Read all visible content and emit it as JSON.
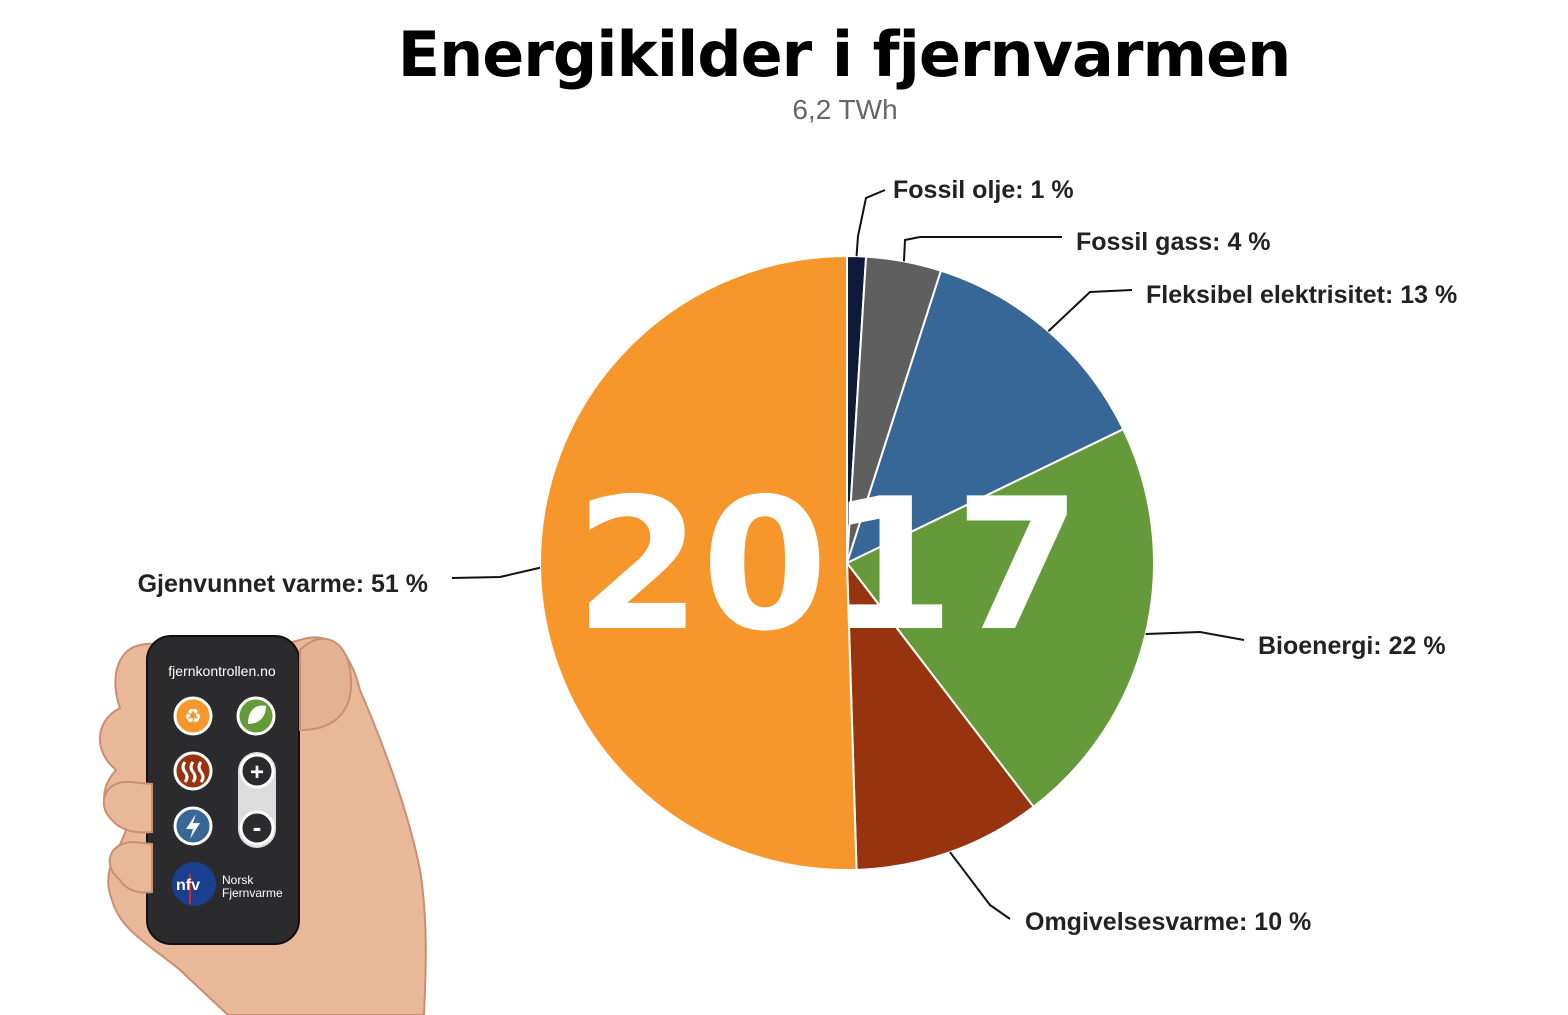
{
  "title": "Energikilder i fjernvarmen",
  "subtitle": "6,2 TWh",
  "year_overlay": "2017",
  "remote": {
    "brand_url": "fjernkontrollen.no",
    "logo_text": "nfv",
    "logo_line1": "Norsk",
    "logo_line2": "Fjernvarme",
    "plus_symbol": "+",
    "minus_symbol": "-",
    "button_icons": [
      "recycle-icon",
      "leaf-icon",
      "heat-icon",
      "lightning-icon"
    ]
  },
  "chart_data": {
    "type": "pie",
    "title": "Energikilder i fjernvarmen",
    "subtitle": "6,2 TWh",
    "slices": [
      {
        "name": "Fossil olje",
        "value": 1,
        "label": "Fossil olje: 1 %",
        "color": "#0d1a3a"
      },
      {
        "name": "Fossil gass",
        "value": 4,
        "label": "Fossil gass: 4 %",
        "color": "#5f5f5f"
      },
      {
        "name": "Fleksibel elektrisitet",
        "value": 13,
        "label": "Fleksibel elektrisitet: 13 %",
        "color": "#366796"
      },
      {
        "name": "Bioenergi",
        "value": 22,
        "label": "Bioenergi: 22 %",
        "color": "#659a3a"
      },
      {
        "name": "Omgivelsesvarme",
        "value": 10,
        "label": "Omgivelsesvarme: 10 %",
        "color": "#97330f"
      },
      {
        "name": "Gjenvunnet varme",
        "value": 51,
        "label": "Gjenvunnet varme: 51 %",
        "color": "#f7962a"
      }
    ]
  }
}
